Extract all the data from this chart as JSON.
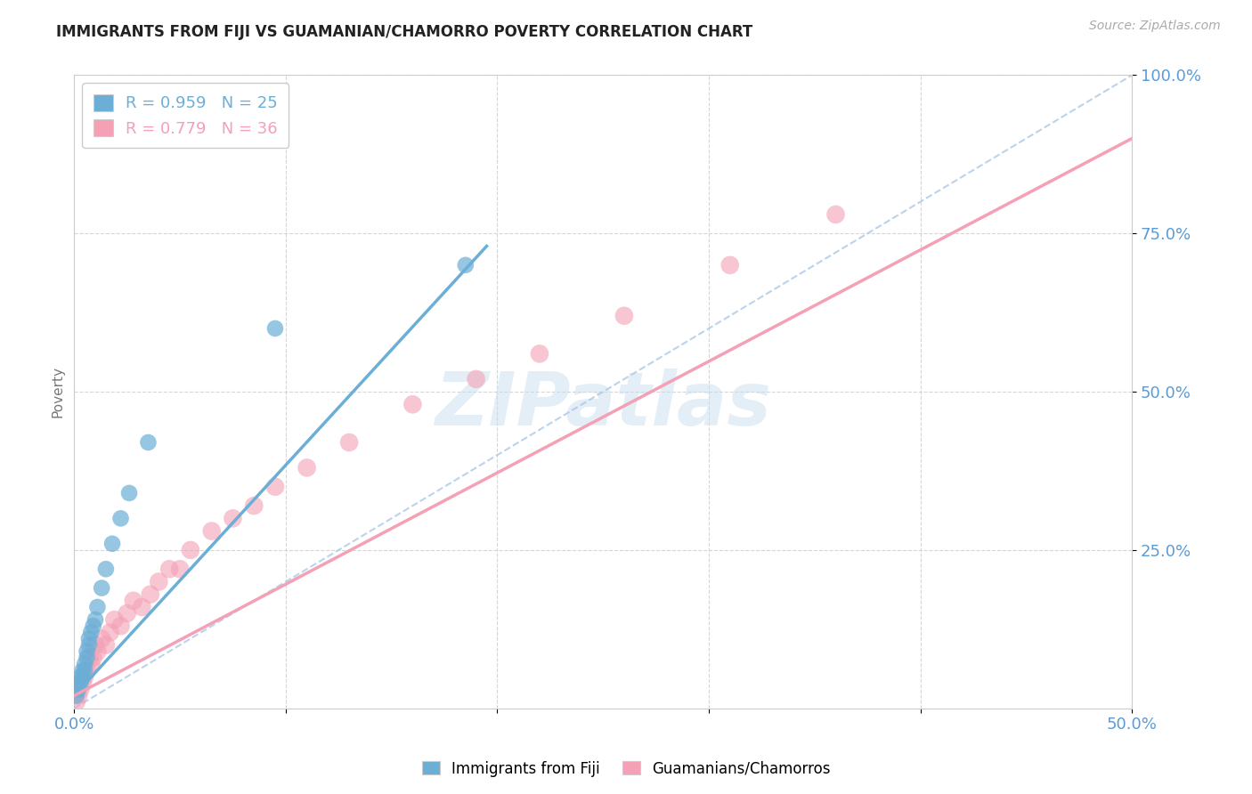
{
  "title": "IMMIGRANTS FROM FIJI VS GUAMANIAN/CHAMORRO POVERTY CORRELATION CHART",
  "source_text": "Source: ZipAtlas.com",
  "ylabel": "Poverty",
  "xlim": [
    0.0,
    0.5
  ],
  "ylim": [
    0.0,
    1.0
  ],
  "xticks": [
    0.0,
    0.1,
    0.2,
    0.3,
    0.4,
    0.5
  ],
  "xtick_labels": [
    "0.0%",
    "",
    "",
    "",
    "",
    "50.0%"
  ],
  "ytick_labels": [
    "25.0%",
    "50.0%",
    "75.0%",
    "100.0%"
  ],
  "yticks": [
    0.25,
    0.5,
    0.75,
    1.0
  ],
  "watermark": "ZIPatlas",
  "fiji_color": "#6baed6",
  "guam_color": "#f4a0b5",
  "fiji_R": 0.959,
  "fiji_N": 25,
  "guam_R": 0.779,
  "guam_N": 36,
  "fiji_scatter_x": [
    0.001,
    0.002,
    0.002,
    0.003,
    0.003,
    0.004,
    0.004,
    0.005,
    0.005,
    0.006,
    0.006,
    0.007,
    0.007,
    0.008,
    0.009,
    0.01,
    0.011,
    0.013,
    0.015,
    0.018,
    0.022,
    0.026,
    0.035,
    0.095,
    0.185
  ],
  "fiji_scatter_y": [
    0.02,
    0.03,
    0.04,
    0.04,
    0.05,
    0.05,
    0.06,
    0.06,
    0.07,
    0.08,
    0.09,
    0.1,
    0.11,
    0.12,
    0.13,
    0.14,
    0.16,
    0.19,
    0.22,
    0.26,
    0.3,
    0.34,
    0.42,
    0.6,
    0.7
  ],
  "guam_scatter_x": [
    0.001,
    0.002,
    0.003,
    0.004,
    0.005,
    0.006,
    0.007,
    0.008,
    0.009,
    0.01,
    0.011,
    0.013,
    0.015,
    0.017,
    0.019,
    0.022,
    0.025,
    0.028,
    0.032,
    0.036,
    0.04,
    0.045,
    0.05,
    0.055,
    0.065,
    0.075,
    0.085,
    0.095,
    0.11,
    0.13,
    0.16,
    0.19,
    0.22,
    0.26,
    0.31,
    0.36
  ],
  "guam_scatter_y": [
    0.01,
    0.02,
    0.03,
    0.04,
    0.05,
    0.06,
    0.08,
    0.07,
    0.08,
    0.1,
    0.09,
    0.11,
    0.1,
    0.12,
    0.14,
    0.13,
    0.15,
    0.17,
    0.16,
    0.18,
    0.2,
    0.22,
    0.22,
    0.25,
    0.28,
    0.3,
    0.32,
    0.35,
    0.38,
    0.42,
    0.48,
    0.52,
    0.56,
    0.62,
    0.7,
    0.78
  ],
  "fiji_trend_x": [
    0.0,
    0.195
  ],
  "fiji_trend_y": [
    0.02,
    0.73
  ],
  "guam_trend_x": [
    0.0,
    0.5
  ],
  "guam_trend_y": [
    0.02,
    0.9
  ],
  "ref_line_x": [
    0.0,
    0.5
  ],
  "ref_line_y": [
    0.0,
    1.0
  ],
  "title_fontsize": 12,
  "axis_color": "#5b9bd5",
  "grid_color": "#cccccc",
  "background_color": "#ffffff"
}
